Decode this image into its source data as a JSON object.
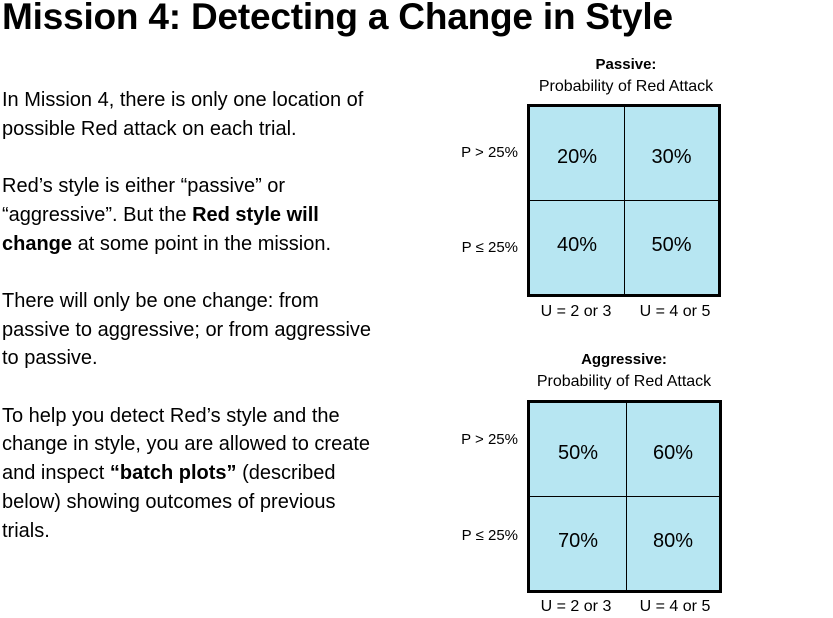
{
  "title": "Mission 4: Detecting a Change in Style",
  "paragraphs": {
    "p1": "In Mission 4, there is only one location of possible Red attack on each trial.",
    "p2_a": "Red’s style is either “passive” or “aggressive”. But the ",
    "p2_b": "Red style will change",
    "p2_c": " at some point in the mission.",
    "p3": "There will only be one change: from passive to aggressive; or from aggressive to passive.",
    "p4_a": "To help you detect Red’s style and the change in style, you are allowed to create and inspect ",
    "p4_b": "“batch plots”",
    "p4_c": " (described below) showing outcomes of previous trials."
  },
  "passive": {
    "title": "Passive:",
    "subtitle": "Probability of Red Attack",
    "row_labels": [
      "P > 25%",
      "P ≤ 25%"
    ],
    "col_labels": [
      "U = 2 or 3",
      "U = 4 or 5"
    ],
    "cells": [
      "20%",
      "30%",
      "40%",
      "50%"
    ]
  },
  "aggressive": {
    "title": "Aggressive:",
    "subtitle": "Probability of Red Attack",
    "row_labels": [
      "P > 25%",
      "P ≤ 25%"
    ],
    "col_labels": [
      "U = 2 or 3",
      "U = 4 or 5"
    ],
    "cells": [
      "50%",
      "60%",
      "70%",
      "80%"
    ]
  },
  "colors": {
    "cell_fill": "#b7e6f2",
    "border": "#000000"
  }
}
